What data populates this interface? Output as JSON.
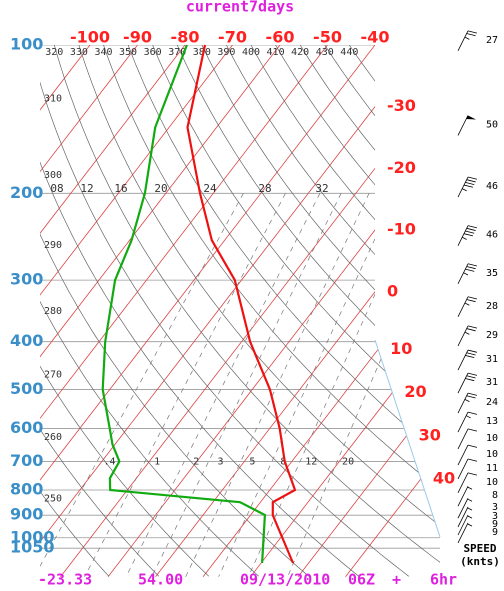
{
  "chart_data": {
    "type": "skewt",
    "title": "current7days",
    "ylim": [
      100,
      1200
    ],
    "yticks": [
      100,
      200,
      300,
      400,
      500,
      600,
      700,
      800,
      900,
      1000,
      1050
    ],
    "xticks": [
      -100,
      -90,
      -80,
      -70,
      -60,
      -50,
      -40,
      -30,
      -20,
      -10,
      0,
      10,
      20,
      30,
      40
    ],
    "theta": [
      250,
      260,
      270,
      280,
      290,
      300,
      310,
      320,
      330,
      340,
      350,
      360,
      370,
      380,
      390,
      400,
      410,
      420,
      430,
      440
    ],
    "mixing_ratios": [
      {
        "value": 0.4,
        "label": ".4"
      },
      1,
      2,
      3,
      5,
      8,
      12,
      20
    ],
    "upper_labels": [
      "08",
      "12",
      "16",
      "20",
      "24",
      "28",
      "32"
    ],
    "temperature": {
      "color": "#ee1111",
      "pressure": [
        100,
        147,
        200,
        249,
        300,
        400,
        500,
        600,
        700,
        800,
        847,
        900,
        1125
      ],
      "values": [
        -75.8,
        -66.1,
        -52.8,
        -42.7,
        -31.4,
        -18.2,
        -6.3,
        2.1,
        8.5,
        15.3,
        12.6,
        14.7,
        26.7
      ]
    },
    "dewpoint": {
      "color": "#11aa11",
      "pressure": [
        100,
        147,
        200,
        249,
        300,
        400,
        500,
        600,
        647,
        700,
        757,
        800,
        847,
        899,
        1125
      ],
      "values": [
        -79.6,
        -72.9,
        -64.4,
        -59.6,
        -56.6,
        -48.7,
        -41.5,
        -33.7,
        -30.5,
        -26.3,
        -25.6,
        -23.6,
        5.7,
        13,
        20.2
      ]
    },
    "wind": {
      "title": "SPEED",
      "unit": "(knts)",
      "pressure": [
        99,
        147,
        196,
        246,
        294,
        343,
        393,
        440,
        490,
        538,
        588,
        636,
        686,
        732,
        781,
        831,
        879,
        916,
        951,
        987
      ],
      "values": [
        27,
        50,
        46,
        46,
        35,
        28,
        29,
        31,
        31,
        24,
        13,
        10,
        10,
        11,
        10,
        8,
        3,
        3,
        9,
        9
      ]
    },
    "footer": [
      "-23.33",
      "54.00",
      "09/13/2010",
      "06Z",
      "+",
      "6hr"
    ]
  }
}
